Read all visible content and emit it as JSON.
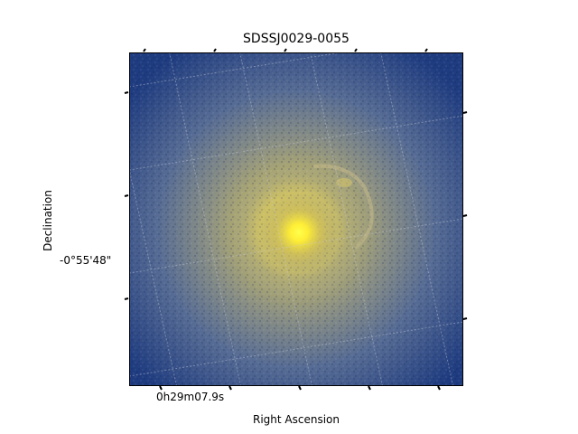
{
  "figure": {
    "title": "SDSSJ0029-0055",
    "xlabel": "Right Ascension",
    "ylabel": "Declination",
    "x_tick_label": "0h29m07.9s",
    "y_tick_label": "-0°55'48\"",
    "colormap": [
      "#00246b",
      "#2d4d8c",
      "#7c8587",
      "#b8b15f",
      "#ffe63b"
    ],
    "grid": "on"
  }
}
